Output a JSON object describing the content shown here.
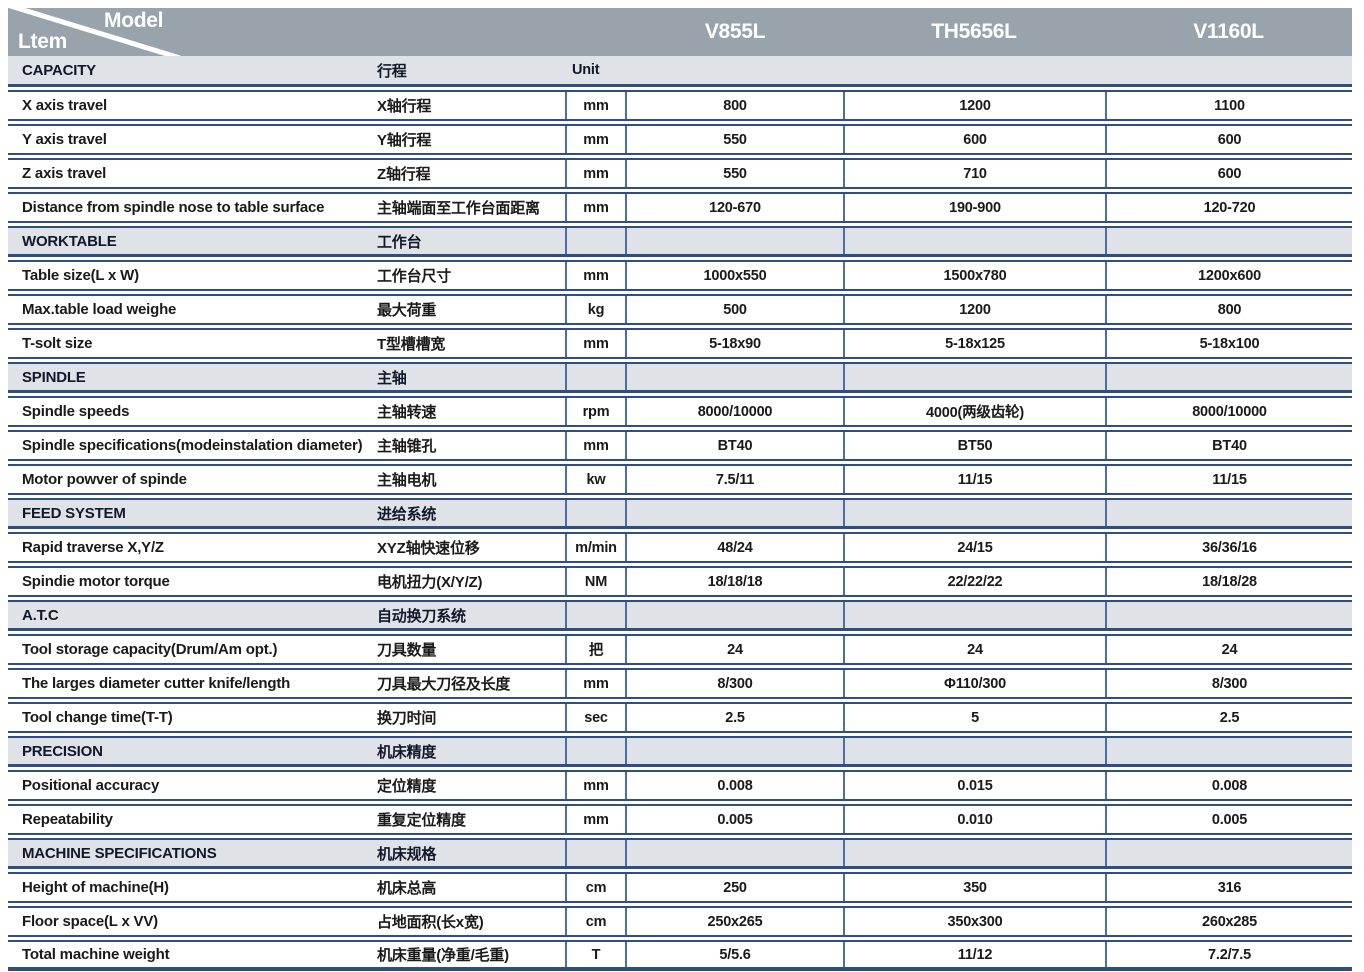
{
  "header": {
    "corner": {
      "top_label": "Model",
      "bottom_label": "Ltem"
    },
    "models": [
      "V855L",
      "TH5656L",
      "V1160L"
    ]
  },
  "colors": {
    "header_band": "#99A3AC",
    "section_row_bg": "#DFE3E7",
    "horizontal_line": "#2F4F80",
    "vertical_line": "#4C6FA1",
    "header_text": "#FFFFFF",
    "body_text": "#1A1A1A"
  },
  "sections": [
    {
      "title_en": "CAPACITY",
      "title_zh": "行程",
      "unit_label": "Unit",
      "rows": [
        {
          "en": "X axis travel",
          "zh": "X轴行程",
          "unit": "mm",
          "values": [
            "800",
            "1200",
            "1100"
          ]
        },
        {
          "en": "Y axis travel",
          "zh": "Y轴行程",
          "unit": "mm",
          "values": [
            "550",
            "600",
            "600"
          ]
        },
        {
          "en": "Z axis travel",
          "zh": "Z轴行程",
          "unit": "mm",
          "values": [
            "550",
            "710",
            "600"
          ]
        },
        {
          "en": "Distance from spindle nose to table surface",
          "zh": "主轴端面至工作台面距离",
          "unit": "mm",
          "values": [
            "120-670",
            "190-900",
            "120-720"
          ]
        }
      ]
    },
    {
      "title_en": "WORKTABLE",
      "title_zh": "工作台",
      "unit_label": "",
      "rows": [
        {
          "en": "Table size(L x W)",
          "zh": "工作台尺寸",
          "unit": "mm",
          "values": [
            "1000x550",
            "1500x780",
            "1200x600"
          ]
        },
        {
          "en": "Max.table load weighe",
          "zh": "最大荷重",
          "unit": "kg",
          "values": [
            "500",
            "1200",
            "800"
          ]
        },
        {
          "en": "T-solt size",
          "zh": "T型槽槽宽",
          "unit": "mm",
          "values": [
            "5-18x90",
            "5-18x125",
            "5-18x100"
          ]
        }
      ]
    },
    {
      "title_en": "SPINDLE",
      "title_zh": "主轴",
      "unit_label": "",
      "rows": [
        {
          "en": "Spindle speeds",
          "zh": "主轴转速",
          "unit": "rpm",
          "values": [
            "8000/10000",
            "4000(两级齿轮)",
            "8000/10000"
          ]
        },
        {
          "en": "Spindle specifications(modeinstalation diameter)",
          "zh": "主轴锥孔",
          "unit": "mm",
          "values": [
            "BT40",
            "BT50",
            "BT40"
          ]
        },
        {
          "en": "Motor powver of spinde",
          "zh": "主轴电机",
          "unit": "kw",
          "values": [
            "7.5/11",
            "11/15",
            "11/15"
          ]
        }
      ]
    },
    {
      "title_en": "FEED SYSTEM",
      "title_zh": "进给系统",
      "unit_label": "",
      "rows": [
        {
          "en": "Rapid traverse X,Y/Z",
          "zh": "XYZ轴快速位移",
          "unit": "m/min",
          "values": [
            "48/24",
            "24/15",
            "36/36/16"
          ]
        },
        {
          "en": "Spindie motor torque",
          "zh": "电机扭力(X/Y/Z)",
          "unit": "NM",
          "values": [
            "18/18/18",
            "22/22/22",
            "18/18/28"
          ]
        }
      ]
    },
    {
      "title_en": "A.T.C",
      "title_zh": "自动换刀系统",
      "unit_label": "",
      "rows": [
        {
          "en": "Tool storage capacity(Drum/Am opt.)",
          "zh": "刀具数量",
          "unit": "把",
          "values": [
            "24",
            "24",
            "24"
          ]
        },
        {
          "en": "The larges diameter cutter knife/length",
          "zh": "刀具最大刀径及长度",
          "unit": "mm",
          "values": [
            "8/300",
            "Φ110/300",
            "8/300"
          ]
        },
        {
          "en": "Tool change time(T-T)",
          "zh": "换刀时间",
          "unit": "sec",
          "values": [
            "2.5",
            "5",
            "2.5"
          ]
        }
      ]
    },
    {
      "title_en": "PRECISION",
      "title_zh": "机床精度",
      "unit_label": "",
      "rows": [
        {
          "en": "Positional accuracy",
          "zh": "定位精度",
          "unit": "mm",
          "values": [
            "0.008",
            "0.015",
            "0.008"
          ]
        },
        {
          "en": "Repeatability",
          "zh": "重复定位精度",
          "unit": "mm",
          "values": [
            "0.005",
            "0.010",
            "0.005"
          ]
        }
      ]
    },
    {
      "title_en": "MACHINE SPECIFICATIONS",
      "title_zh": "机床规格",
      "unit_label": "",
      "rows": [
        {
          "en": "Height of machine(H)",
          "zh": "机床总高",
          "unit": "cm",
          "values": [
            "250",
            "350",
            "316"
          ]
        },
        {
          "en": "Floor space(L x VV)",
          "zh": "占地面积(长x宽)",
          "unit": "cm",
          "values": [
            "250x265",
            "350x300",
            "260x285"
          ]
        },
        {
          "en": "Total machine weight",
          "zh": "机床重量(净重/毛重)",
          "unit": "T",
          "values": [
            "5/5.6",
            "11/12",
            "7.2/7.5"
          ]
        }
      ]
    }
  ]
}
